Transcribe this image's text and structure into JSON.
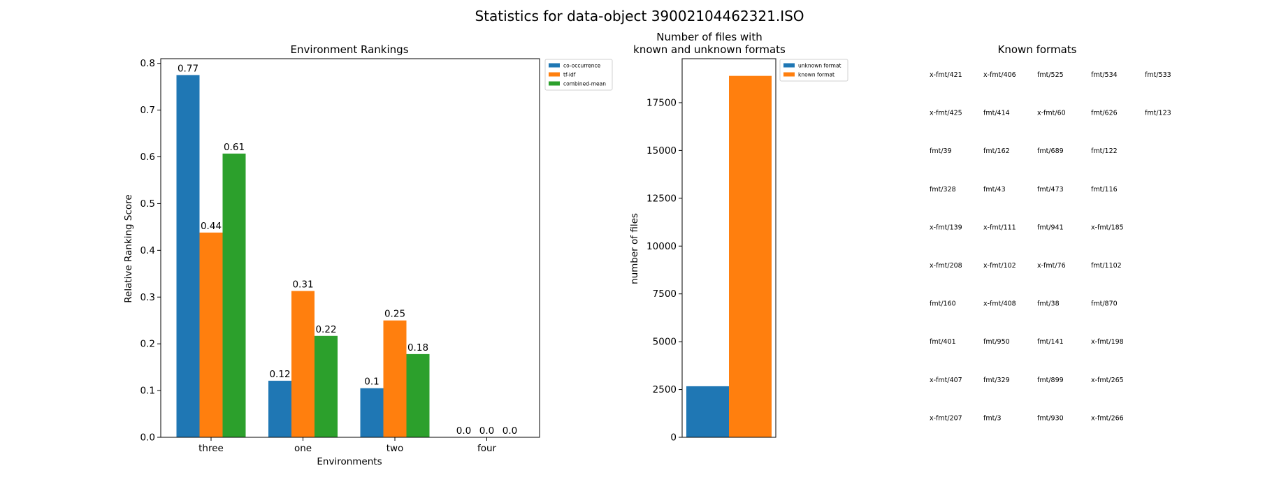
{
  "figure_title": "Statistics for data-object 39002104462321.ISO",
  "colors": {
    "blue": "#1f77b4",
    "orange": "#ff7f0e",
    "green": "#2ca02c"
  },
  "chart_data": [
    {
      "type": "bar",
      "title": "Environment Rankings",
      "xlabel": "Environments",
      "ylabel": "Relative Ranking Score",
      "categories": [
        "three",
        "one",
        "two",
        "four"
      ],
      "ylim": [
        0,
        0.81
      ],
      "yticks": [
        "0.0",
        "0.1",
        "0.2",
        "0.3",
        "0.4",
        "0.5",
        "0.6",
        "0.7",
        "0.8"
      ],
      "legend_position": "outside upper right",
      "series": [
        {
          "name": "co-occurrence",
          "color": "#1f77b4",
          "values": [
            0.775,
            0.121,
            0.105,
            0.0
          ],
          "labels": [
            "0.77",
            "0.12",
            "0.1",
            "0.0"
          ]
        },
        {
          "name": "tf-idf",
          "color": "#ff7f0e",
          "values": [
            0.438,
            0.313,
            0.25,
            0.0
          ],
          "labels": [
            "0.44",
            "0.31",
            "0.25",
            "0.0"
          ]
        },
        {
          "name": "combined-mean",
          "color": "#2ca02c",
          "values": [
            0.607,
            0.217,
            0.178,
            0.0
          ],
          "labels": [
            "0.61",
            "0.22",
            "0.18",
            "0.0"
          ]
        }
      ],
      "grid": false
    },
    {
      "type": "bar",
      "title": "Number of files with\nknown and unknown formats",
      "xlabel": "",
      "ylabel": "number of files",
      "categories": [
        ""
      ],
      "ylim": [
        0,
        19800
      ],
      "yticks": [
        "0",
        "2500",
        "5000",
        "7500",
        "10000",
        "12500",
        "15000",
        "17500"
      ],
      "legend_position": "outside upper right",
      "series": [
        {
          "name": "unknown format",
          "color": "#1f77b4",
          "values": [
            2670
          ]
        },
        {
          "name": "known format",
          "color": "#ff7f0e",
          "values": [
            18900
          ]
        }
      ],
      "grid": false
    }
  ],
  "known_formats": {
    "title": "Known formats",
    "rows": [
      [
        "x-fmt/421",
        "x-fmt/406",
        "fmt/525",
        "fmt/534",
        "fmt/533"
      ],
      [
        "x-fmt/425",
        "fmt/414",
        "x-fmt/60",
        "fmt/626",
        "fmt/123"
      ],
      [
        "fmt/39",
        "fmt/162",
        "fmt/689",
        "fmt/122"
      ],
      [
        "fmt/328",
        "fmt/43",
        "fmt/473",
        "fmt/116"
      ],
      [
        "x-fmt/139",
        "x-fmt/111",
        "fmt/941",
        "x-fmt/185"
      ],
      [
        "x-fmt/208",
        "x-fmt/102",
        "x-fmt/76",
        "fmt/1102"
      ],
      [
        "fmt/160",
        "x-fmt/408",
        "fmt/38",
        "fmt/870"
      ],
      [
        "fmt/401",
        "fmt/950",
        "fmt/141",
        "x-fmt/198"
      ],
      [
        "x-fmt/407",
        "fmt/329",
        "fmt/899",
        "x-fmt/265"
      ],
      [
        "x-fmt/207",
        "fmt/3",
        "fmt/930",
        "x-fmt/266"
      ]
    ]
  }
}
